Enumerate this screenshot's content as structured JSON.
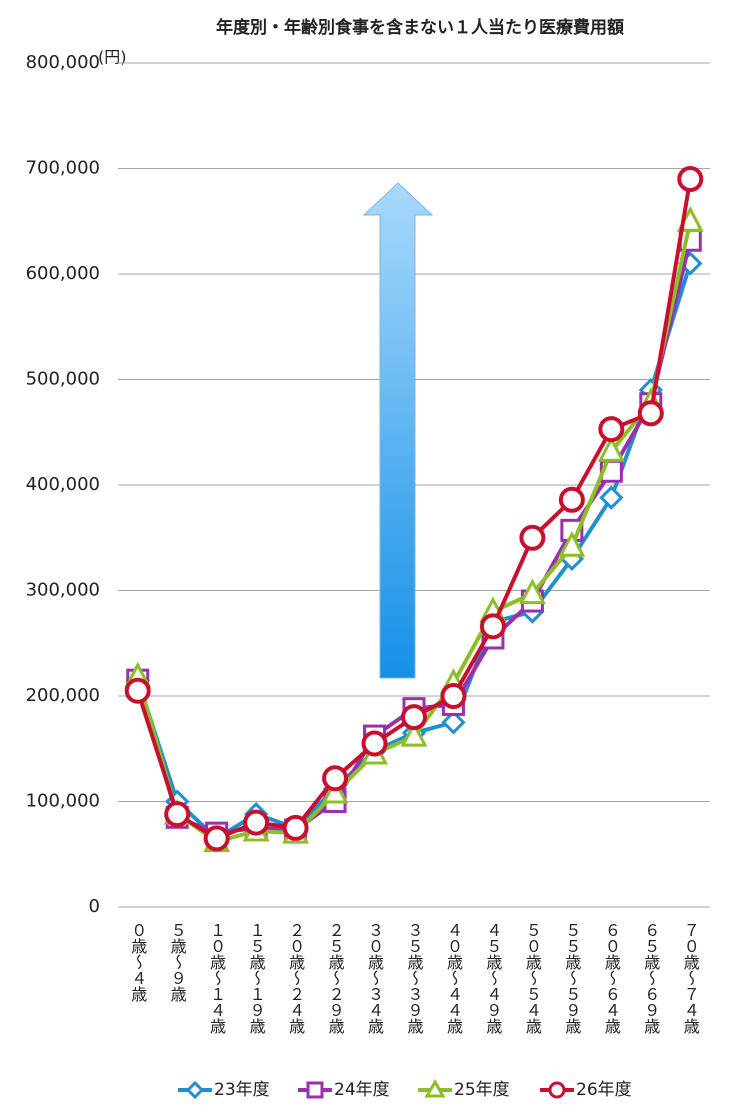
{
  "chart_data": {
    "type": "line",
    "title": "年度別・年齢別食事を含まない１人当たり医療費用額",
    "y_unit": "(円)",
    "categories": [
      "０歳～４歳",
      "５歳～９歳",
      "１０歳～１４歳",
      "１５歳～１９歳",
      "２０歳～２４歳",
      "２５歳～２９歳",
      "３０歳～３４歳",
      "３５歳～３９歳",
      "４０歳～４４歳",
      "４５歳～４９歳",
      "５０歳～５４歳",
      "５５歳～５９歳",
      "６０歳～６４歳",
      "６５歳～６９歳",
      "７０歳～７４歳"
    ],
    "series": [
      {
        "name": "23年度",
        "color": "#1f8fd0",
        "marker": "diamond",
        "values": [
          215000,
          100000,
          65000,
          88000,
          75000,
          112000,
          148000,
          165000,
          175000,
          270000,
          280000,
          330000,
          388000,
          490000,
          610000
        ]
      },
      {
        "name": "24年度",
        "color": "#9b2fae",
        "marker": "square",
        "values": [
          215000,
          85000,
          70000,
          75000,
          73000,
          100000,
          162000,
          188000,
          192000,
          255000,
          290000,
          357000,
          413000,
          477000,
          632000
        ]
      },
      {
        "name": "25年度",
        "color": "#8cbf26",
        "marker": "triangle",
        "values": [
          218000,
          88000,
          62000,
          72000,
          70000,
          108000,
          145000,
          162000,
          212000,
          280000,
          297000,
          342000,
          432000,
          478000,
          650000
        ]
      },
      {
        "name": "26年度",
        "color": "#c8102e",
        "marker": "circle",
        "values": [
          205000,
          88000,
          65000,
          80000,
          75000,
          122000,
          155000,
          180000,
          200000,
          266000,
          350000,
          386000,
          453000,
          468000,
          690000
        ]
      }
    ],
    "ylim": [
      0,
      800000
    ],
    "yticks": [
      0,
      {
        "value": 100000,
        "label": "100,000"
      },
      {
        "value": 200000,
        "label": "200,000"
      },
      {
        "value": 300000,
        "label": "300,000"
      },
      {
        "value": 400000,
        "label": "400,000"
      },
      {
        "value": 500000,
        "label": "500,000"
      },
      {
        "value": 600000,
        "label": "600,000"
      },
      {
        "value": 700000,
        "label": "700,000"
      },
      {
        "value": 800000,
        "label": "800,000"
      }
    ],
    "grid": true
  }
}
